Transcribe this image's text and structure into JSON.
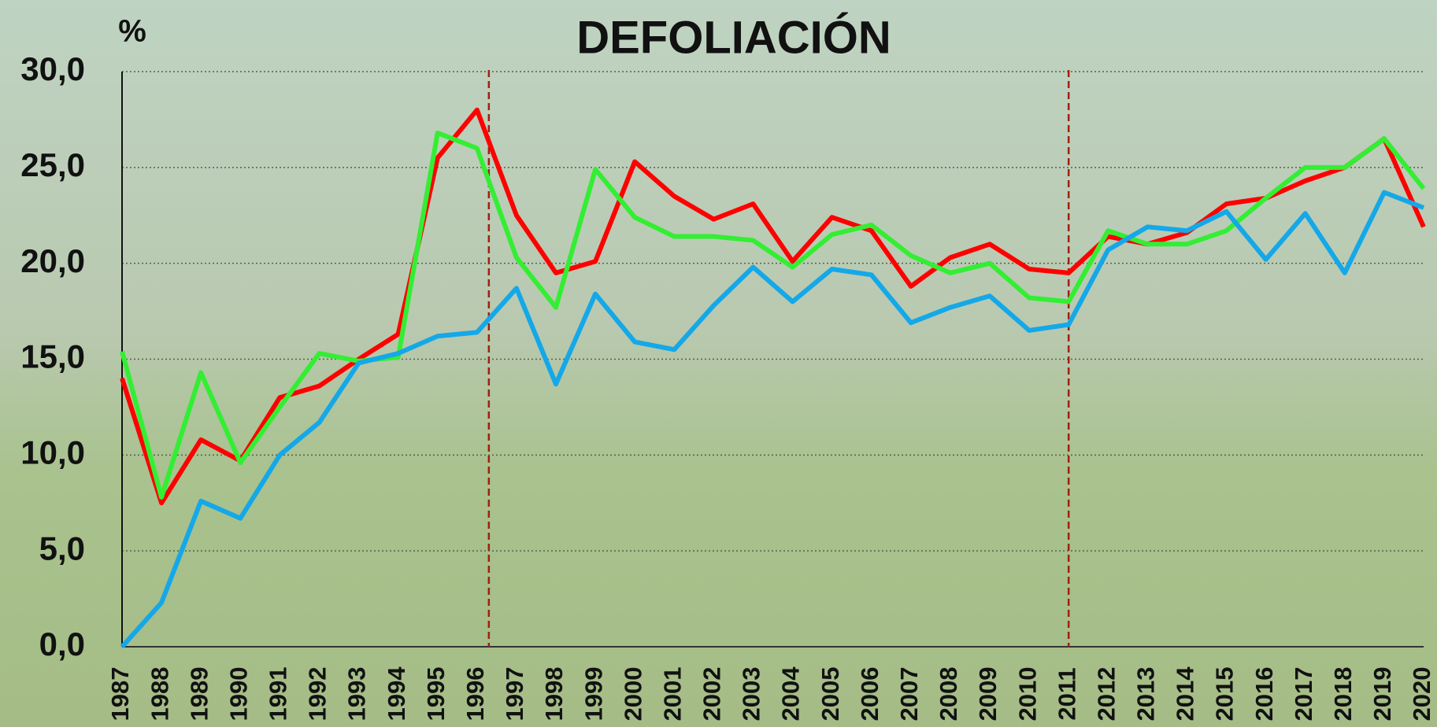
{
  "chart_data": {
    "type": "line",
    "title": "DEFOLIACIÓN",
    "y_label": "%",
    "x": [
      1987,
      1988,
      1989,
      1990,
      1991,
      1992,
      1993,
      1994,
      1995,
      1996,
      1997,
      1998,
      1999,
      2000,
      2001,
      2002,
      2003,
      2004,
      2005,
      2006,
      2007,
      2008,
      2009,
      2010,
      2011,
      2012,
      2013,
      2014,
      2015,
      2016,
      2017,
      2018,
      2019,
      2020
    ],
    "xlim": [
      1987,
      2020
    ],
    "ylim": [
      0,
      30
    ],
    "yticks": [
      {
        "value": 0,
        "label": "0,0"
      },
      {
        "value": 5,
        "label": "5,0"
      },
      {
        "value": 10,
        "label": "10,0"
      },
      {
        "value": 15,
        "label": "15,0"
      },
      {
        "value": 20,
        "label": "20,0"
      },
      {
        "value": 25,
        "label": "25,0"
      },
      {
        "value": 30,
        "label": "30,0"
      }
    ],
    "grid": true,
    "vlines": [
      1996.3,
      2011
    ],
    "series": [
      {
        "color": "#ff0000",
        "values": [
          14.0,
          7.5,
          10.8,
          9.7,
          13.0,
          13.6,
          15.0,
          16.3,
          25.5,
          28.0,
          22.5,
          19.5,
          20.1,
          25.3,
          23.5,
          22.3,
          23.1,
          20.1,
          22.4,
          21.7,
          18.8,
          20.3,
          21.0,
          19.7,
          19.5,
          21.4,
          21.0,
          21.6,
          23.1,
          23.4,
          24.3,
          25.0,
          26.5,
          21.9
        ]
      },
      {
        "color": "#33ee33",
        "values": [
          15.4,
          7.8,
          14.3,
          9.6,
          12.5,
          15.3,
          14.9,
          15.1,
          26.8,
          26.0,
          20.3,
          17.7,
          24.9,
          22.4,
          21.4,
          21.4,
          21.2,
          19.8,
          21.5,
          22.0,
          20.4,
          19.5,
          20.0,
          18.2,
          18.0,
          21.7,
          21.0,
          21.0,
          21.7,
          23.4,
          25.0,
          25.0,
          26.5,
          23.9
        ]
      },
      {
        "color": "#14a8e8",
        "values": [
          0.0,
          2.3,
          7.6,
          6.7,
          10.0,
          11.7,
          14.8,
          15.3,
          16.2,
          16.4,
          18.7,
          13.7,
          18.4,
          15.9,
          15.5,
          17.8,
          19.8,
          18.0,
          19.7,
          19.4,
          16.9,
          17.7,
          18.3,
          16.5,
          16.8,
          20.7,
          21.9,
          21.7,
          22.7,
          20.2,
          22.6,
          19.5,
          23.7,
          22.9
        ]
      }
    ]
  }
}
